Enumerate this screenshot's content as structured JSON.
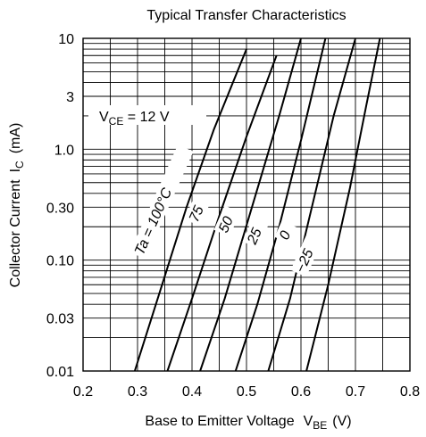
{
  "chart_data": {
    "type": "line",
    "title": "Typical Transfer Characteristics",
    "xlabel": "Base to Emitter Voltage",
    "xlabel_symbol": "V",
    "xlabel_subscript": "BE",
    "xlabel_unit": "(V)",
    "ylabel": "Collector Current",
    "ylabel_symbol": "I",
    "ylabel_subscript": "C",
    "ylabel_unit": "(mA)",
    "xlim": [
      0.2,
      0.8
    ],
    "ylim": [
      0.01,
      10
    ],
    "yscale": "log",
    "grid": true,
    "x_ticks": [
      "0.2",
      "0.3",
      "0.4",
      "0.5",
      "0.6",
      "0.7",
      "0.8"
    ],
    "y_ticks": [
      "0.01",
      "0.03",
      "0.10",
      "0.30",
      "1.0",
      "3",
      "10"
    ],
    "y_tick_values": [
      0.01,
      0.03,
      0.1,
      0.3,
      1.0,
      3,
      10
    ],
    "annotation": {
      "text_prefix": "V",
      "text_subscript": "CE",
      "text_suffix": " = 12 V"
    },
    "series": [
      {
        "name": "Ta = 100°C",
        "x": [
          0.295,
          0.34,
          0.39,
          0.44,
          0.5
        ],
        "y": [
          0.01,
          0.05,
          0.3,
          1.5,
          8
        ]
      },
      {
        "name": "75",
        "x": [
          0.355,
          0.4,
          0.45,
          0.5,
          0.555
        ],
        "y": [
          0.01,
          0.045,
          0.25,
          1.3,
          7
        ]
      },
      {
        "name": "50",
        "x": [
          0.415,
          0.46,
          0.51,
          0.56,
          0.6
        ],
        "y": [
          0.01,
          0.045,
          0.3,
          2,
          10
        ]
      },
      {
        "name": "25",
        "x": [
          0.48,
          0.52,
          0.56,
          0.6,
          0.645
        ],
        "y": [
          0.01,
          0.04,
          0.2,
          1.2,
          10
        ]
      },
      {
        "name": "0",
        "x": [
          0.54,
          0.58,
          0.62,
          0.66,
          0.7
        ],
        "y": [
          0.01,
          0.045,
          0.3,
          2,
          10
        ]
      },
      {
        "name": "−25",
        "x": [
          0.61,
          0.65,
          0.69,
          0.72,
          0.745
        ],
        "y": [
          0.01,
          0.06,
          0.45,
          2.5,
          10
        ]
      }
    ]
  }
}
